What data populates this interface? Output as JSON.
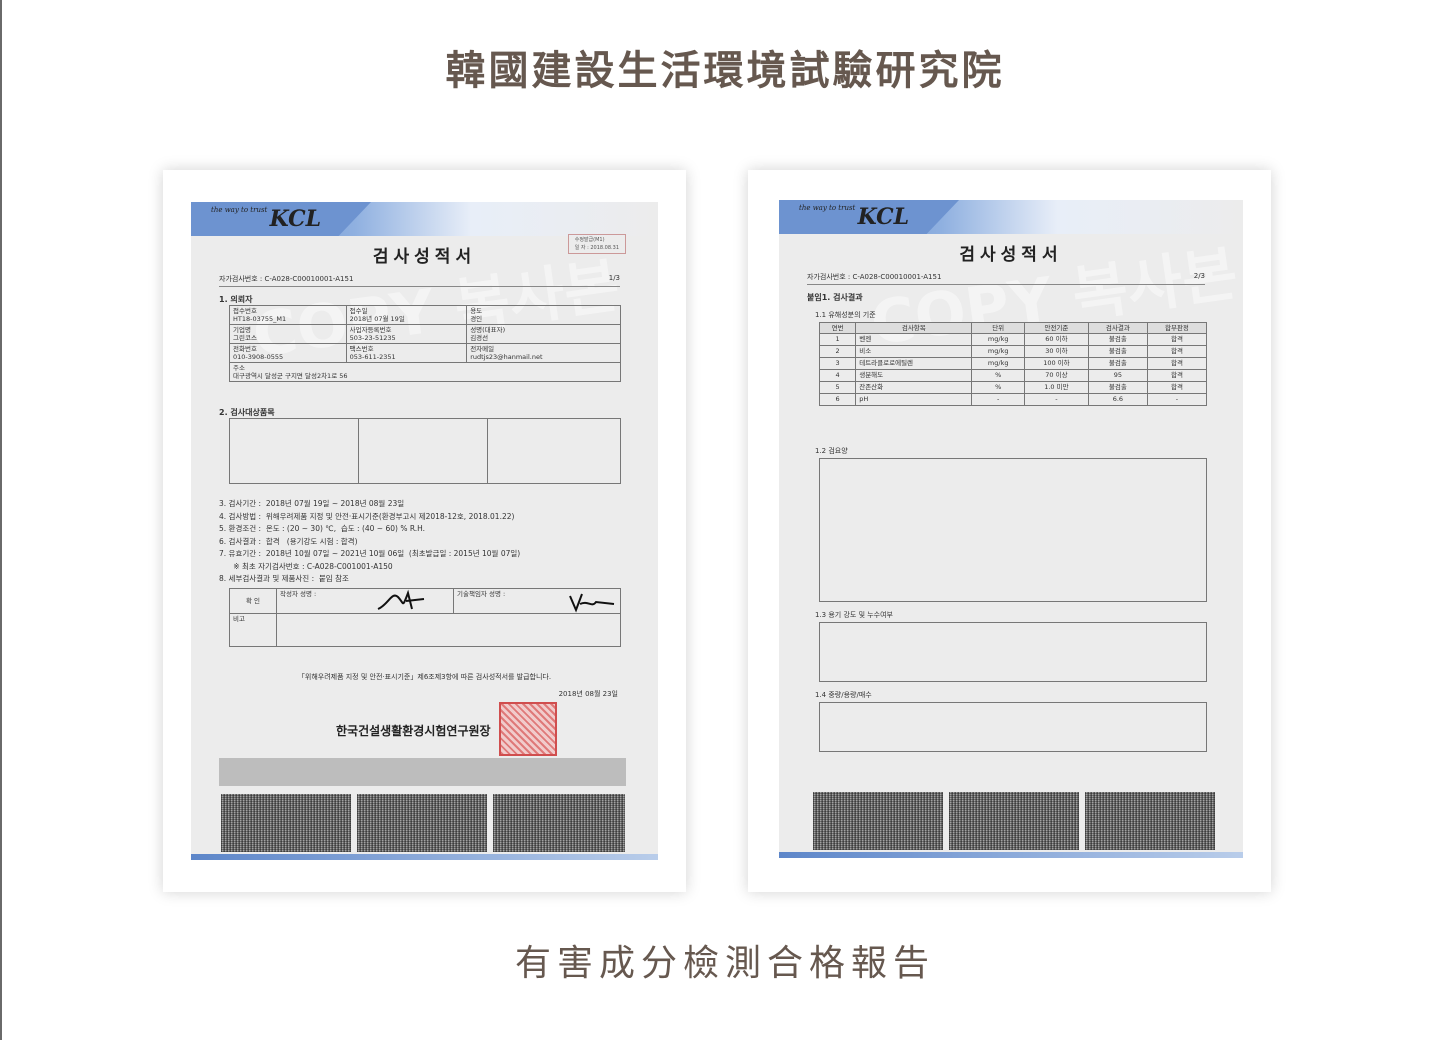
{
  "page": {
    "title": "韓國建設生活環境試驗研究院",
    "caption": "有害成分檢測合格報告",
    "title_color": "#66584f"
  },
  "doc1": {
    "logo_tag": "the way to trust",
    "logo": "KCL",
    "title": "검사성적서",
    "stamp_lines": [
      "수정발급(M1)",
      "일 자 : 2018.08.31"
    ],
    "cert_no": "자가검사번호 :  C-A028-C00010001-A151",
    "page_no": "1/3",
    "sec1": "1. 의뢰자",
    "info_rows": [
      [
        [
          "접수번호",
          "HT18-03755_M1"
        ],
        [
          "접수일",
          "2018년 07월 19일"
        ],
        [
          "용도",
          "경인"
        ]
      ],
      [
        [
          "기업명",
          "그린코스"
        ],
        [
          "사업자등록번호",
          "503-23-51235"
        ],
        [
          "성명(대표자)",
          "김경선"
        ]
      ],
      [
        [
          "전화번호",
          "010-3908-0555"
        ],
        [
          "팩스번호",
          "053-611-2351"
        ],
        [
          "전자메일",
          "rudtjs23@hanmail.net"
        ]
      ]
    ],
    "address_label": "주소",
    "address": "대구광역시 달성군 구지면 달성2차1로 56",
    "sec2": "2. 검사대상품목",
    "items": [
      "3. 검사기간 :  2018년 07월 19일 ~ 2018년 08월 23일",
      "4. 검사방법 :  위해우려제품 지정 및 안전·표시기준(환경부고시 제2018-12호, 2018.01.22)",
      "5. 환경조건 :  온도 : (20 ~ 30) ℃,  습도 : (40 ~ 60) % R.H.",
      "6. 검사결과 :  합격   (용기강도 시험 : 합격)",
      "7. 유효기간 :  2018년 10월 07일 ~ 2021년 10월 06일  (최초발급일 : 2015년 10월 07일)",
      "      ※ 최초 자기검사번호 : C-A028-C001001-A150",
      "8. 세부검사결과 및 제품사진 :  붙임 참조"
    ],
    "confirm_label": "확 인",
    "writer_label": "작성자 성명 :",
    "tech_label": "기술책임자 성명 :",
    "remark_label": "비고",
    "issue_text": "「위해우려제품 지정 및 안전·표시기준」제6조제3항에 따른 검사성적서를 발급합니다.",
    "date": "2018년 08월 23일",
    "org": "한국건설생활환경시험연구원장"
  },
  "doc2": {
    "logo_tag": "the way to trust",
    "logo": "KCL",
    "title": "검사성적서",
    "cert_no": "자가검사번호 :  C-A028-C00010001-A151",
    "page_no": "2/3",
    "sec": "붙임1. 검사결과",
    "sub1": "1.1 유해성분의 기준",
    "headers": [
      "연번",
      "검사항목",
      "단위",
      "안전기준",
      "검사결과",
      "합부판정"
    ],
    "rows": [
      [
        "1",
        "벤젠",
        "mg/kg",
        "60 이하",
        "불검출",
        "합격"
      ],
      [
        "2",
        "비소",
        "mg/kg",
        "30 이하",
        "불검출",
        "합격"
      ],
      [
        "3",
        "테트라클로로에틸렌",
        "mg/kg",
        "100 이하",
        "불검출",
        "합격"
      ],
      [
        "4",
        "생분해도",
        "%",
        "70 이상",
        "95",
        "합격"
      ],
      [
        "5",
        "잔존산화",
        "%",
        "1.0 미만",
        "불검출",
        "합격"
      ],
      [
        "6",
        "pH",
        "-",
        "-",
        "6.6",
        "-"
      ]
    ],
    "sub2": "1.2 검요양",
    "sub3": "1.3 용기 강도 및 누수여부",
    "sub4": "1.4 중량/용량/매수"
  }
}
